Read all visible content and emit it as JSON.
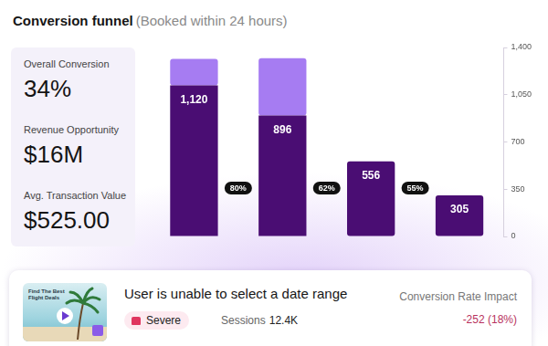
{
  "chart_data": {
    "type": "bar",
    "title": "Conversion funnel",
    "subtitle": "(Booked within 24 hours)",
    "categories": [
      null,
      null,
      null,
      null
    ],
    "series": [
      {
        "color": "#4a0d73",
        "values": [
          1120,
          896,
          556,
          305
        ],
        "value_labels": [
          "1,120",
          "896",
          "556",
          "305"
        ],
        "data_labels": true
      },
      {
        "color": "#a67cf2",
        "values": [
          195,
          425,
          0,
          0
        ]
      }
    ],
    "stacked": true,
    "ylim": [
      0,
      1400
    ],
    "yticks": [
      0,
      350,
      700,
      {
        "value": 1050,
        "label": "1,050"
      },
      {
        "value": 1400,
        "label": "1,400"
      }
    ],
    "grid": false,
    "tick_labels": "y",
    "annotations": [
      "80%",
      "62%",
      "55%"
    ]
  },
  "kpis": [
    {
      "label": "Overall Conversion",
      "value": "34%"
    },
    {
      "label": "Revenue Opportunity",
      "value": "$16M"
    },
    {
      "label": "Avg. Transaction Value",
      "value": "$525.00"
    }
  ],
  "issue": {
    "thumbnail_text": "Find The Best Flight Deals",
    "title": "User is unable to select a date range",
    "severity": "Severe",
    "sessions_label": "Sessions",
    "sessions": "12.4K",
    "impact_label": "Conversion Rate Impact",
    "impact": "-252 (18%)"
  }
}
